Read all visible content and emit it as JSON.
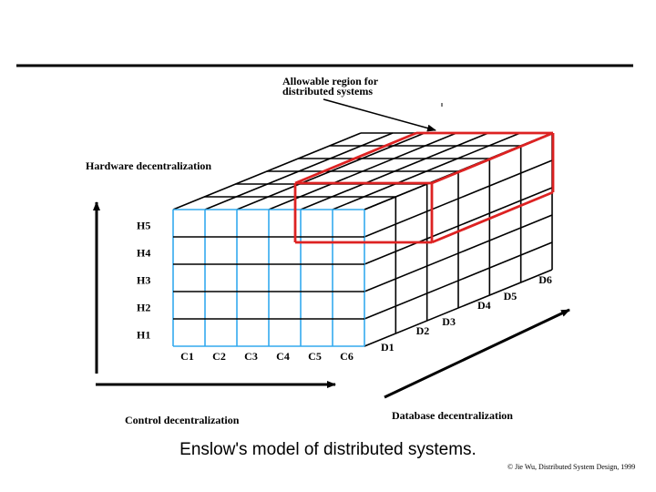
{
  "labels": {
    "allowable_line1": "Allowable region for",
    "allowable_line2": "distributed systems",
    "hardware_axis": "Hardware decentralization",
    "control_axis": "Control decentralization",
    "database_axis": "Database decentralization"
  },
  "hardware_levels": [
    "H1",
    "H2",
    "H3",
    "H4",
    "H5"
  ],
  "control_levels": [
    "C1",
    "C2",
    "C3",
    "C4",
    "C5",
    "C6"
  ],
  "database_levels": [
    "D1",
    "D2",
    "D3",
    "D4",
    "D5",
    "D6"
  ],
  "caption": "Enslow's model of distributed systems.",
  "copyright": "© Jie Wu, Distributed System Design, 1999",
  "colors": {
    "grid": "#000000",
    "front_face": "#33aaee",
    "highlight": "#dd2222",
    "text": "#000000"
  }
}
